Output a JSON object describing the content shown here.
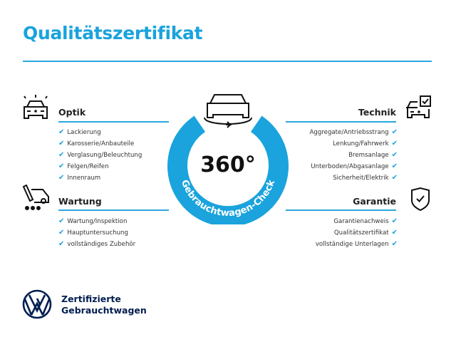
{
  "title": "Qualitätszertifikat",
  "accent_color": "#1aa3dd",
  "check_icon": "check-icon",
  "center": {
    "big": "360°",
    "ring_text": "Gebrauchtwagen-Check",
    "icon": "car-rotate-icon"
  },
  "optik": {
    "heading": "Optik",
    "icon": "car-lights-icon",
    "items": [
      "Lackierung",
      "Karosserie/Anbauteile",
      "Verglasung/Beleuchtung",
      "Felgen/Reifen",
      "Innenraum"
    ]
  },
  "wartung": {
    "heading": "Wartung",
    "icon": "service-van-icon",
    "items": [
      "Wartung/Inspektion",
      "Hauptuntersuchung",
      "vollständiges Zubehör"
    ]
  },
  "technik": {
    "heading": "Technik",
    "icon": "car-checkbox-icon",
    "items": [
      "Aggregate/Antriebsstrang",
      "Lenkung/Fahrwerk",
      "Bremsanlage",
      "Unterboden/Abgasanlage",
      "Sicherheit/Elektrik"
    ]
  },
  "garantie": {
    "heading": "Garantie",
    "icon": "shield-check-icon",
    "items": [
      "Garantienachweis",
      "Qualitätszertifikat",
      "vollständige Unterlagen"
    ]
  },
  "brand": {
    "line1": "Zertifizierte",
    "line2": "Gebrauchtwagen",
    "logo": "vw-logo"
  }
}
